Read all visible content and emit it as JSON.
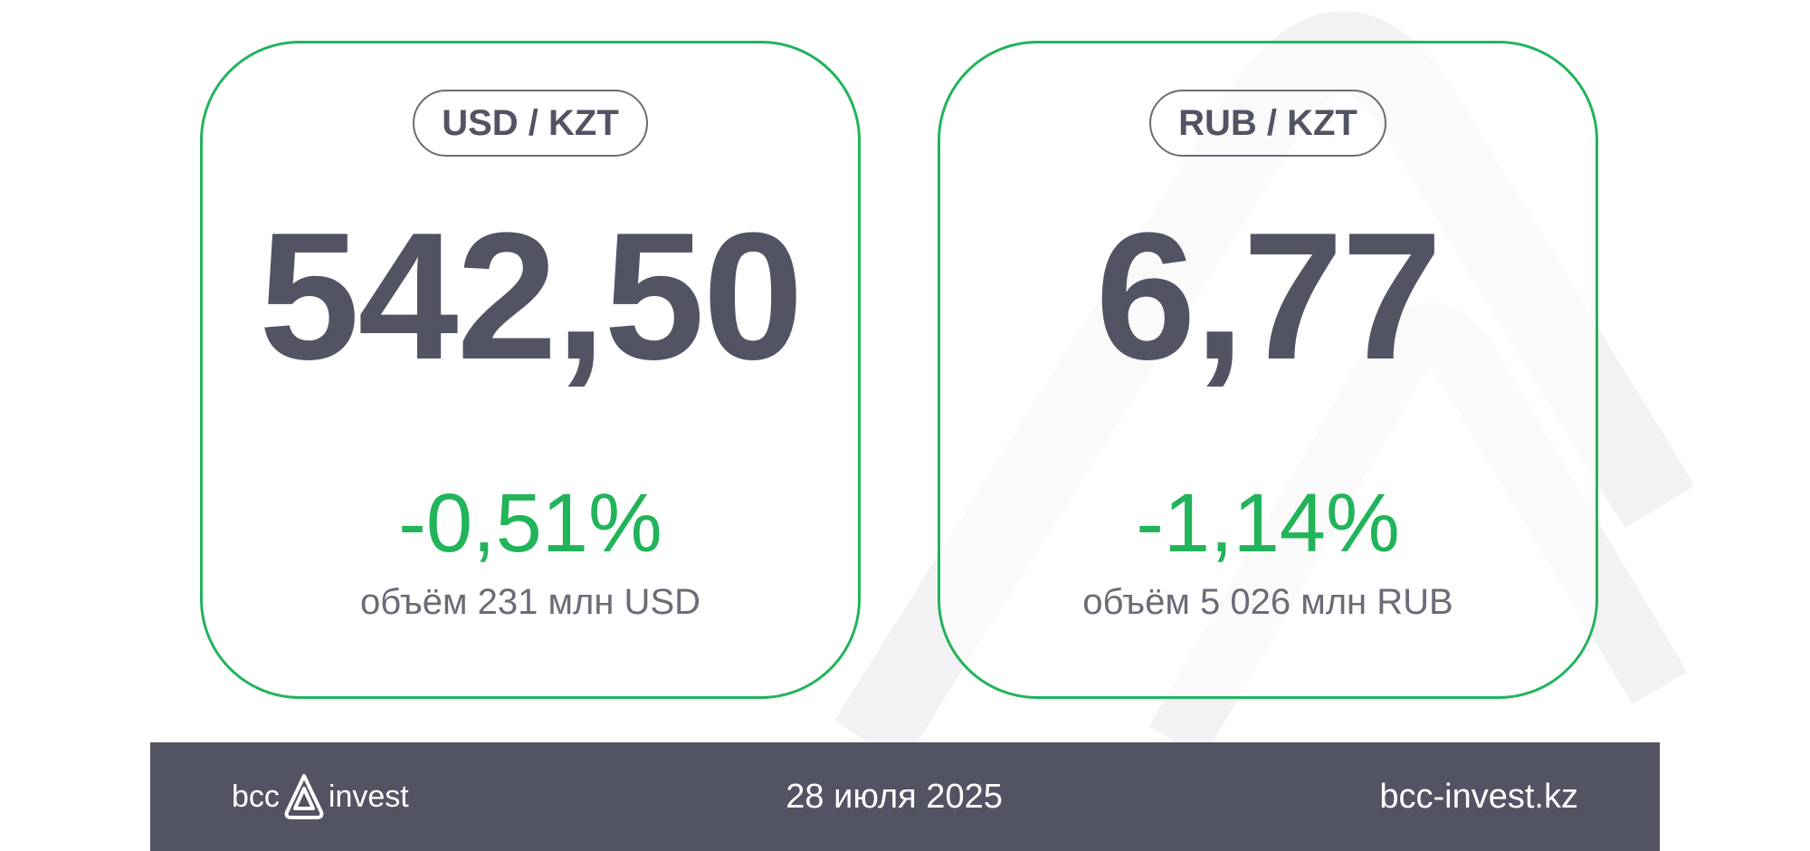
{
  "cards": [
    {
      "pair": "USD / KZT",
      "rate": "542,50",
      "change": "-0,51%",
      "volume": "объём 231 млн USD"
    },
    {
      "pair": "RUB / KZT",
      "rate": "6,77",
      "change": "-1,14%",
      "volume": "объём 5 026 млн RUB"
    }
  ],
  "footer": {
    "logo_left": "bcc",
    "logo_right": "invest",
    "date": "28 июля 2025",
    "site": "bcc-invest.kz"
  },
  "colors": {
    "accent": "#22b45a",
    "text": "#525463",
    "footer_bg": "#525463"
  }
}
